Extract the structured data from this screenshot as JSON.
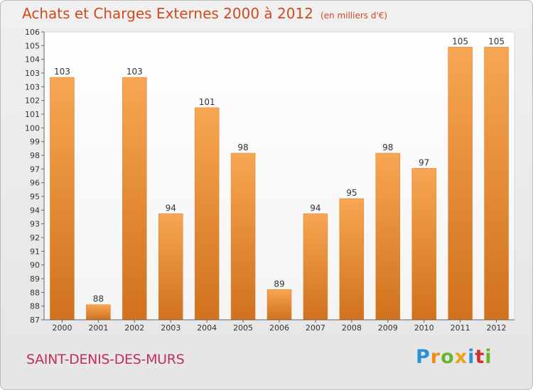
{
  "header": {
    "title": "Achats et Charges Externes 2000 à 2012",
    "subtitle": "(en milliers d'€)"
  },
  "footer": {
    "city": "SAINT-DENIS-DES-MURS",
    "logo": "Proxiti"
  },
  "colors": {
    "title": "#d04a1f",
    "city": "#c0305a",
    "bar_top": "#f6a350",
    "bar_bottom": "#d2741f"
  },
  "chart_data": {
    "type": "bar",
    "title": "Achats et Charges Externes 2000 à 2012",
    "subtitle": "(en milliers d'€)",
    "xlabel": "",
    "ylabel": "",
    "categories": [
      "2000",
      "2001",
      "2002",
      "2003",
      "2004",
      "2005",
      "2006",
      "2007",
      "2008",
      "2009",
      "2010",
      "2011",
      "2012"
    ],
    "values": [
      103,
      88,
      103,
      94,
      101,
      98,
      89,
      94,
      95,
      98,
      97,
      105,
      105
    ],
    "ylim": [
      87,
      106
    ],
    "yticks": [
      "87",
      "88",
      "88",
      "89",
      "90",
      "91",
      "92",
      "93",
      "94",
      "95",
      "96",
      "97",
      "98",
      "99",
      "100",
      "101",
      "102",
      "103",
      "103",
      "104",
      "105",
      "106"
    ],
    "grid": false,
    "legend": "none"
  }
}
